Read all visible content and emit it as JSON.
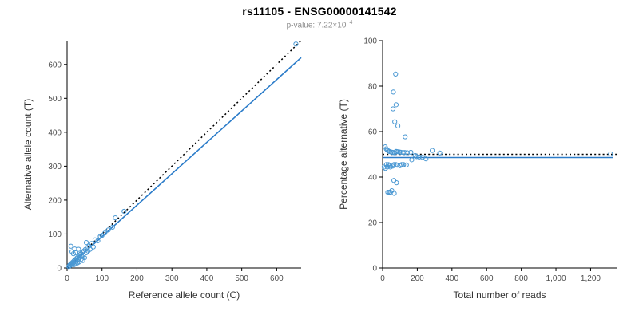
{
  "header": {
    "title": "rs11105 - ENSG00000141542",
    "pvalue_prefix": "p-value: 7.22×10",
    "pvalue_exponent": "−4"
  },
  "colors": {
    "point_stroke": "#4a98d3",
    "fit_line": "#2b7cc9",
    "identity_line": "#000000",
    "axis": "#000000",
    "tick_text": "#4d4d4d"
  },
  "chart_data": [
    {
      "type": "scatter",
      "name": "allele-count-scatter",
      "xlabel": "Reference allele count (C)",
      "ylabel": "Alternative allele count (T)",
      "xlim": [
        0,
        670
      ],
      "ylim": [
        0,
        670
      ],
      "grid": false,
      "legend": "none",
      "x_ticks": [
        0,
        100,
        200,
        300,
        400,
        500,
        600
      ],
      "x_tick_labels": [
        "0",
        "100",
        "200",
        "300",
        "400",
        "500",
        "600"
      ],
      "y_ticks": [
        0,
        100,
        200,
        300,
        400,
        500,
        600
      ],
      "y_tick_labels": [
        "0",
        "100",
        "200",
        "300",
        "400",
        "500",
        "600"
      ],
      "point_color": "#4a98d3",
      "lines": [
        {
          "name": "identity-line",
          "color": "#000000",
          "dash": "dotted",
          "x1": 0,
          "y1": 0,
          "x2": 670,
          "y2": 670
        },
        {
          "name": "regression-line",
          "color": "#2b7cc9",
          "dash": "solid",
          "x1": 0,
          "y1": 0,
          "x2": 670,
          "y2": 620
        }
      ],
      "points": [
        [
          5,
          4
        ],
        [
          7,
          8
        ],
        [
          9,
          7
        ],
        [
          10,
          11
        ],
        [
          11,
          64
        ],
        [
          12,
          10
        ],
        [
          13,
          14
        ],
        [
          14,
          48
        ],
        [
          15,
          12
        ],
        [
          16,
          17
        ],
        [
          18,
          42
        ],
        [
          18,
          15
        ],
        [
          20,
          10
        ],
        [
          20,
          21
        ],
        [
          22,
          56
        ],
        [
          22,
          18
        ],
        [
          24,
          25
        ],
        [
          25,
          45
        ],
        [
          25,
          20
        ],
        [
          26,
          13
        ],
        [
          28,
          29
        ],
        [
          30,
          15
        ],
        [
          30,
          31
        ],
        [
          32,
          26
        ],
        [
          33,
          55
        ],
        [
          34,
          35
        ],
        [
          35,
          18
        ],
        [
          36,
          30
        ],
        [
          38,
          40
        ],
        [
          40,
          25
        ],
        [
          40,
          42
        ],
        [
          42,
          35
        ],
        [
          44,
          46
        ],
        [
          45,
          22
        ],
        [
          46,
          38
        ],
        [
          48,
          50
        ],
        [
          50,
          30
        ],
        [
          52,
          54
        ],
        [
          55,
          75
        ],
        [
          55,
          45
        ],
        [
          58,
          60
        ],
        [
          60,
          50
        ],
        [
          63,
          65
        ],
        [
          66,
          55
        ],
        [
          70,
          72
        ],
        [
          75,
          62
        ],
        [
          80,
          83
        ],
        [
          88,
          80
        ],
        [
          95,
          93
        ],
        [
          100,
          96
        ],
        [
          108,
          103
        ],
        [
          118,
          112
        ],
        [
          130,
          120
        ],
        [
          138,
          148
        ],
        [
          163,
          167
        ],
        [
          655,
          660
        ]
      ]
    },
    {
      "type": "scatter",
      "name": "percentage-scatter",
      "xlabel": "Total number of reads",
      "ylabel": "Percentage alternative (T)",
      "xlim": [
        0,
        1350
      ],
      "ylim": [
        0,
        100
      ],
      "grid": false,
      "legend": "none",
      "x_ticks": [
        0,
        200,
        400,
        600,
        800,
        1000,
        1200
      ],
      "x_tick_labels": [
        "0",
        "200",
        "400",
        "600",
        "800",
        "1,000",
        "1,200"
      ],
      "y_ticks": [
        0,
        20,
        40,
        60,
        80,
        100
      ],
      "y_tick_labels": [
        "0",
        "20",
        "40",
        "60",
        "80",
        "100"
      ],
      "point_color": "#4a98d3",
      "lines": [
        {
          "name": "fifty-percent-line",
          "color": "#000000",
          "dash": "dotted",
          "x1": 0,
          "y1": 50,
          "x2": 1350,
          "y2": 50
        },
        {
          "name": "mean-percentage-line",
          "color": "#2b7cc9",
          "dash": "solid",
          "x1": 0,
          "y1": 48.6,
          "x2": 1330,
          "y2": 48.6
        }
      ],
      "points": [
        [
          9,
          44.4
        ],
        [
          15,
          53.3
        ],
        [
          16,
          43.8
        ],
        [
          21,
          52.4
        ],
        [
          75,
          85.3
        ],
        [
          22,
          45.5
        ],
        [
          27,
          51.9
        ],
        [
          62,
          77.4
        ],
        [
          27,
          44.4
        ],
        [
          33,
          51.5
        ],
        [
          60,
          70
        ],
        [
          33,
          45.5
        ],
        [
          30,
          33.3
        ],
        [
          41,
          51.2
        ],
        [
          78,
          71.8
        ],
        [
          40,
          45
        ],
        [
          49,
          51
        ],
        [
          70,
          64.3
        ],
        [
          45,
          44.4
        ],
        [
          39,
          33.3
        ],
        [
          57,
          50.9
        ],
        [
          45,
          33.3
        ],
        [
          61,
          50.8
        ],
        [
          58,
          44.8
        ],
        [
          88,
          62.5
        ],
        [
          69,
          50.7
        ],
        [
          53,
          34
        ],
        [
          66,
          45.5
        ],
        [
          78,
          51.3
        ],
        [
          65,
          38.5
        ],
        [
          82,
          51.2
        ],
        [
          77,
          45.5
        ],
        [
          90,
          51.1
        ],
        [
          67,
          32.8
        ],
        [
          84,
          45.2
        ],
        [
          98,
          51
        ],
        [
          80,
          37.5
        ],
        [
          106,
          50.9
        ],
        [
          130,
          57.7
        ],
        [
          100,
          45
        ],
        [
          118,
          50.8
        ],
        [
          110,
          45.5
        ],
        [
          128,
          50.8
        ],
        [
          121,
          45.5
        ],
        [
          142,
          50.7
        ],
        [
          137,
          45.3
        ],
        [
          163,
          50.9
        ],
        [
          168,
          47.6
        ],
        [
          188,
          49.5
        ],
        [
          196,
          49
        ],
        [
          211,
          48.8
        ],
        [
          230,
          48.7
        ],
        [
          250,
          48
        ],
        [
          286,
          51.7
        ],
        [
          330,
          50.6
        ],
        [
          1315,
          50.2
        ]
      ]
    }
  ]
}
